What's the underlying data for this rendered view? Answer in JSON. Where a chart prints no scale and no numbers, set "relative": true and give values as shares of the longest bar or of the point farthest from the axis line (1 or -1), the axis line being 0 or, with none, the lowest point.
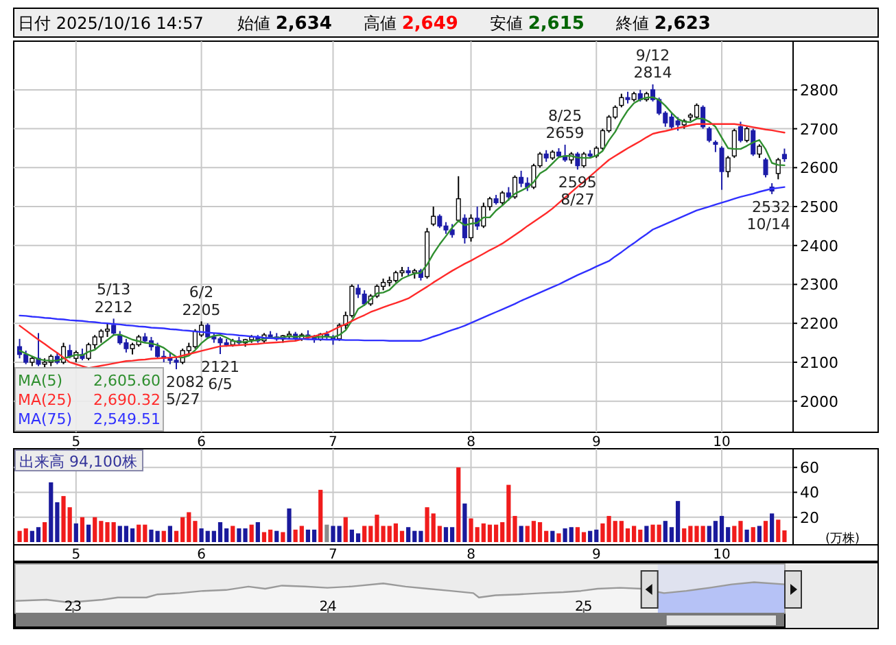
{
  "chart_data": [
    {
      "type": "candlestick",
      "title": "日付 2025/10/16 14:57",
      "annotations": [
        "始値 2,634",
        "高値 2,649",
        "安値 2,615",
        "終値 2,623",
        {
          "text": "5/13\n2212",
          "y": 2212
        },
        {
          "text": "6/2\n2205",
          "y": 2205
        },
        {
          "text": "2082\n5/27",
          "y": 2082
        },
        {
          "text": "2121\n6/5",
          "y": 2121
        },
        {
          "text": "8/25\n2659",
          "y": 2659
        },
        {
          "text": "2595\n8/27",
          "y": 2595
        },
        {
          "text": "9/12\n2814",
          "y": 2814
        },
        {
          "text": "2532\n10/14",
          "y": 2532
        }
      ],
      "categories": [
        null,
        null,
        null,
        null,
        null,
        null,
        null,
        null,
        null,
        "5",
        null,
        null,
        null,
        null,
        null,
        null,
        null,
        null,
        null,
        null,
        null,
        null,
        null,
        null,
        null,
        null,
        null,
        null,
        null,
        "6",
        null,
        null,
        null,
        null,
        null,
        null,
        null,
        null,
        null,
        null,
        null,
        null,
        null,
        null,
        null,
        null,
        null,
        null,
        null,
        null,
        "7",
        null,
        null,
        null,
        null,
        null,
        null,
        null,
        null,
        null,
        null,
        null,
        null,
        null,
        null,
        null,
        null,
        null,
        null,
        null,
        null,
        null,
        "8",
        null,
        null,
        null,
        null,
        null,
        null,
        null,
        null,
        null,
        null,
        null,
        null,
        null,
        null,
        null,
        null,
        null,
        null,
        null,
        "9",
        null,
        null,
        null,
        null,
        null,
        null,
        null,
        null,
        null,
        null,
        null,
        null,
        null,
        null,
        null,
        null,
        null,
        null,
        null,
        "10",
        null,
        null,
        null,
        null,
        null,
        null,
        null,
        null,
        null,
        null
      ],
      "ohlc": [
        [
          2140,
          2160,
          2110,
          2120
        ],
        [
          2120,
          2130,
          2095,
          2100
        ],
        [
          2100,
          2115,
          2090,
          2110
        ],
        [
          2110,
          2175,
          2090,
          2095
        ],
        [
          2095,
          2110,
          2085,
          2100
        ],
        [
          2100,
          2120,
          2090,
          2115
        ],
        [
          2115,
          2125,
          2095,
          2100
        ],
        [
          2100,
          2150,
          2095,
          2140
        ],
        [
          2130,
          2145,
          2110,
          2115
        ],
        [
          2110,
          2130,
          2100,
          2125
        ],
        [
          2120,
          2135,
          2105,
          2110
        ],
        [
          2110,
          2150,
          2105,
          2145
        ],
        [
          2145,
          2170,
          2135,
          2165
        ],
        [
          2165,
          2185,
          2150,
          2180
        ],
        [
          2180,
          2200,
          2165,
          2185
        ],
        [
          2195,
          2212,
          2170,
          2175
        ],
        [
          2170,
          2180,
          2145,
          2150
        ],
        [
          2150,
          2160,
          2125,
          2135
        ],
        [
          2135,
          2150,
          2120,
          2145
        ],
        [
          2145,
          2170,
          2140,
          2165
        ],
        [
          2165,
          2175,
          2150,
          2155
        ],
        [
          2155,
          2165,
          2130,
          2140
        ],
        [
          2140,
          2150,
          2110,
          2115
        ],
        [
          2115,
          2130,
          2100,
          2110
        ],
        [
          2110,
          2125,
          2095,
          2105
        ],
        [
          2105,
          2115,
          2082,
          2100
        ],
        [
          2100,
          2135,
          2095,
          2130
        ],
        [
          2130,
          2150,
          2120,
          2140
        ],
        [
          2140,
          2185,
          2135,
          2180
        ],
        [
          2170,
          2205,
          2165,
          2195
        ],
        [
          2195,
          2200,
          2160,
          2165
        ],
        [
          2165,
          2175,
          2150,
          2160
        ],
        [
          2160,
          2165,
          2121,
          2150
        ],
        [
          2150,
          2160,
          2140,
          2145
        ],
        [
          2145,
          2160,
          2140,
          2155
        ],
        [
          2155,
          2165,
          2145,
          2150
        ],
        [
          2150,
          2160,
          2140,
          2158
        ],
        [
          2158,
          2170,
          2150,
          2165
        ],
        [
          2165,
          2170,
          2150,
          2155
        ],
        [
          2155,
          2175,
          2150,
          2170
        ],
        [
          2170,
          2180,
          2160,
          2165
        ],
        [
          2165,
          2175,
          2155,
          2160
        ],
        [
          2160,
          2170,
          2150,
          2168
        ],
        [
          2168,
          2180,
          2160,
          2172
        ],
        [
          2172,
          2178,
          2155,
          2160
        ],
        [
          2160,
          2175,
          2155,
          2170
        ],
        [
          2170,
          2182,
          2160,
          2165
        ],
        [
          2165,
          2170,
          2150,
          2158
        ],
        [
          2158,
          2175,
          2155,
          2172
        ],
        [
          2172,
          2180,
          2160,
          2165
        ],
        [
          2165,
          2170,
          2145,
          2160
        ],
        [
          2160,
          2200,
          2155,
          2195
        ],
        [
          2195,
          2230,
          2185,
          2220
        ],
        [
          2220,
          2300,
          2215,
          2295
        ],
        [
          2290,
          2300,
          2265,
          2275
        ],
        [
          2275,
          2285,
          2245,
          2250
        ],
        [
          2250,
          2275,
          2245,
          2270
        ],
        [
          2270,
          2300,
          2265,
          2295
        ],
        [
          2295,
          2315,
          2285,
          2305
        ],
        [
          2305,
          2320,
          2295,
          2310
        ],
        [
          2310,
          2335,
          2305,
          2330
        ],
        [
          2330,
          2345,
          2320,
          2335
        ],
        [
          2335,
          2345,
          2320,
          2330
        ],
        [
          2330,
          2340,
          2315,
          2335
        ],
        [
          2335,
          2340,
          2310,
          2318
        ],
        [
          2320,
          2445,
          2315,
          2435
        ],
        [
          2455,
          2500,
          2450,
          2475
        ],
        [
          2475,
          2480,
          2445,
          2450
        ],
        [
          2450,
          2460,
          2430,
          2440
        ],
        [
          2440,
          2455,
          2420,
          2428
        ],
        [
          2465,
          2578,
          2460,
          2520
        ],
        [
          2470,
          2480,
          2405,
          2420
        ],
        [
          2420,
          2480,
          2410,
          2470
        ],
        [
          2470,
          2500,
          2440,
          2450
        ],
        [
          2450,
          2510,
          2445,
          2500
        ],
        [
          2500,
          2525,
          2490,
          2520
        ],
        [
          2520,
          2530,
          2505,
          2510
        ],
        [
          2510,
          2540,
          2505,
          2535
        ],
        [
          2535,
          2550,
          2515,
          2525
        ],
        [
          2525,
          2580,
          2520,
          2575
        ],
        [
          2575,
          2592,
          2550,
          2560
        ],
        [
          2560,
          2575,
          2540,
          2550
        ],
        [
          2550,
          2610,
          2545,
          2605
        ],
        [
          2605,
          2640,
          2600,
          2635
        ],
        [
          2635,
          2645,
          2615,
          2625
        ],
        [
          2625,
          2645,
          2620,
          2640
        ],
        [
          2640,
          2650,
          2625,
          2630
        ],
        [
          2630,
          2659,
          2615,
          2620
        ],
        [
          2620,
          2640,
          2610,
          2635
        ],
        [
          2635,
          2640,
          2595,
          2605
        ],
        [
          2605,
          2640,
          2600,
          2635
        ],
        [
          2635,
          2645,
          2625,
          2630
        ],
        [
          2630,
          2655,
          2625,
          2650
        ],
        [
          2650,
          2700,
          2645,
          2695
        ],
        [
          2695,
          2735,
          2690,
          2730
        ],
        [
          2730,
          2760,
          2725,
          2755
        ],
        [
          2760,
          2790,
          2755,
          2780
        ],
        [
          2780,
          2795,
          2765,
          2775
        ],
        [
          2775,
          2795,
          2770,
          2790
        ],
        [
          2790,
          2800,
          2770,
          2775
        ],
        [
          2775,
          2795,
          2770,
          2790
        ],
        [
          2800,
          2814,
          2770,
          2775
        ],
        [
          2775,
          2780,
          2735,
          2740
        ],
        [
          2740,
          2745,
          2705,
          2715
        ],
        [
          2730,
          2740,
          2700,
          2705
        ],
        [
          2720,
          2730,
          2695,
          2710
        ],
        [
          2710,
          2725,
          2700,
          2720
        ],
        [
          2730,
          2740,
          2720,
          2735
        ],
        [
          2730,
          2765,
          2725,
          2760
        ],
        [
          2755,
          2760,
          2700,
          2705
        ],
        [
          2700,
          2705,
          2665,
          2670
        ],
        [
          2665,
          2670,
          2640,
          2660
        ],
        [
          2650,
          2655,
          2543,
          2590
        ],
        [
          2590,
          2630,
          2575,
          2625
        ],
        [
          2630,
          2700,
          2625,
          2695
        ],
        [
          2705,
          2718,
          2665,
          2670
        ],
        [
          2670,
          2705,
          2665,
          2700
        ],
        [
          2695,
          2700,
          2630,
          2635
        ],
        [
          2635,
          2660,
          2625,
          2655
        ],
        [
          2620,
          2625,
          2575,
          2582
        ],
        [
          2550,
          2560,
          2532,
          2540
        ],
        [
          2585,
          2625,
          2570,
          2620
        ],
        [
          2634,
          2649,
          2615,
          2623
        ]
      ],
      "series": [
        {
          "type": "line",
          "name": "MA(5) 2,605.60",
          "color": "#2f8f2f",
          "values": [
            2130,
            2122,
            2115,
            2108,
            2105,
            2104,
            2104,
            2110,
            2114,
            2119,
            2118,
            2127,
            2132,
            2145,
            2157,
            2170,
            2171,
            2165,
            2158,
            2154,
            2150,
            2148,
            2144,
            2137,
            2125,
            2114,
            2112,
            2117,
            2131,
            2149,
            2162,
            2168,
            2170,
            2163,
            2155,
            2152,
            2152,
            2155,
            2157,
            2160,
            2163,
            2163,
            2164,
            2167,
            2165,
            2167,
            2167,
            2165,
            2165,
            2166,
            2164,
            2170,
            2182,
            2207,
            2237,
            2247,
            2262,
            2277,
            2279,
            2286,
            2302,
            2315,
            2322,
            2328,
            2330,
            2351,
            2379,
            2403,
            2424,
            2446,
            2463,
            2452,
            2456,
            2458,
            2472,
            2472,
            2490,
            2503,
            2518,
            2533,
            2541,
            2549,
            2563,
            2585,
            2595,
            2611,
            2627,
            2630,
            2630,
            2626,
            2625,
            2625,
            2631,
            2643,
            2670,
            2692,
            2722,
            2747,
            2766,
            2775,
            2780,
            2781,
            2774,
            2759,
            2741,
            2725,
            2718,
            2717,
            2726,
            2726,
            2718,
            2705,
            2677,
            2650,
            2648,
            2648,
            2656,
            2665,
            2671,
            2647,
            2612,
            2607,
            2606
          ]
        },
        {
          "type": "line",
          "name": "MA(25) 2,690.32",
          "color": "#ff2a2a",
          "values": [
            2194,
            2182,
            2170,
            2158,
            2147,
            2135,
            2124,
            2112,
            2100,
            2095,
            2090,
            2085,
            2088,
            2091,
            2094,
            2097,
            2100,
            2103,
            2104,
            2106,
            2107,
            2109,
            2110,
            2111,
            2112,
            2113,
            2117,
            2121,
            2125,
            2129,
            2133,
            2137,
            2141,
            2142,
            2143,
            2144,
            2145,
            2146,
            2147,
            2149,
            2150,
            2151,
            2152,
            2154,
            2155,
            2159,
            2163,
            2167,
            2171,
            2175,
            2183,
            2191,
            2198,
            2206,
            2214,
            2221,
            2229,
            2235,
            2241,
            2247,
            2252,
            2258,
            2264,
            2274,
            2284,
            2294,
            2305,
            2315,
            2325,
            2335,
            2344,
            2353,
            2361,
            2370,
            2379,
            2388,
            2396,
            2405,
            2416,
            2427,
            2438,
            2450,
            2461,
            2472,
            2483,
            2495,
            2509,
            2523,
            2537,
            2551,
            2564,
            2578,
            2592,
            2606,
            2620,
            2630,
            2640,
            2650,
            2659,
            2668,
            2678,
            2687,
            2691,
            2694,
            2698,
            2702,
            2705,
            2709,
            2712,
            2712,
            2712,
            2712,
            2712,
            2712,
            2712,
            2710,
            2707,
            2704,
            2701,
            2698,
            2696,
            2693,
            2690
          ]
        },
        {
          "type": "line",
          "name": "MA(75) 2,549.51",
          "color": "#3030ff",
          "values": [
            2220,
            2219,
            2217,
            2216,
            2214,
            2213,
            2211,
            2210,
            2208,
            2207,
            2206,
            2204,
            2203,
            2201,
            2200,
            2198,
            2197,
            2195,
            2194,
            2192,
            2191,
            2189,
            2188,
            2187,
            2185,
            2184,
            2182,
            2181,
            2179,
            2178,
            2176,
            2175,
            2174,
            2172,
            2171,
            2169,
            2168,
            2166,
            2165,
            2163,
            2162,
            2161,
            2161,
            2160,
            2160,
            2160,
            2159,
            2159,
            2159,
            2158,
            2158,
            2158,
            2157,
            2157,
            2157,
            2156,
            2156,
            2156,
            2156,
            2155,
            2155,
            2155,
            2155,
            2155,
            2155,
            2160,
            2166,
            2171,
            2177,
            2183,
            2188,
            2194,
            2201,
            2208,
            2215,
            2222,
            2229,
            2236,
            2243,
            2250,
            2258,
            2265,
            2272,
            2279,
            2286,
            2293,
            2300,
            2308,
            2316,
            2324,
            2331,
            2338,
            2346,
            2353,
            2360,
            2372,
            2383,
            2395,
            2406,
            2418,
            2429,
            2441,
            2448,
            2455,
            2462,
            2469,
            2476,
            2483,
            2490,
            2495,
            2500,
            2505,
            2510,
            2515,
            2520,
            2525,
            2529,
            2533,
            2538,
            2542,
            2546,
            2548,
            2550
          ]
        }
      ],
      "ylim": [
        1920,
        2925
      ],
      "yticks": [
        2000,
        2100,
        2200,
        2300,
        2400,
        2500,
        2600,
        2700,
        2800
      ],
      "grid": true
    },
    {
      "type": "bar",
      "title": "出来高 94,100株",
      "ylabel": "(万株)",
      "categories": [
        null,
        null,
        null,
        null,
        null,
        null,
        null,
        null,
        null,
        "5",
        null,
        null,
        null,
        null,
        null,
        null,
        null,
        null,
        null,
        null,
        null,
        null,
        null,
        null,
        null,
        null,
        null,
        null,
        null,
        "6",
        null,
        null,
        null,
        null,
        null,
        null,
        null,
        null,
        null,
        null,
        null,
        null,
        null,
        null,
        null,
        null,
        null,
        null,
        null,
        null,
        "7",
        null,
        null,
        null,
        null,
        null,
        null,
        null,
        null,
        null,
        null,
        null,
        null,
        null,
        null,
        null,
        null,
        null,
        null,
        null,
        null,
        null,
        "8",
        null,
        null,
        null,
        null,
        null,
        null,
        null,
        null,
        null,
        null,
        null,
        null,
        null,
        null,
        null,
        null,
        null,
        null,
        null,
        "9",
        null,
        null,
        null,
        null,
        null,
        null,
        null,
        null,
        null,
        null,
        null,
        null,
        null,
        null,
        null,
        null,
        null,
        null,
        null,
        "10",
        null,
        null,
        null,
        null,
        null,
        null,
        null,
        null,
        null,
        null
      ],
      "values": [
        9,
        11,
        9,
        12,
        16,
        48,
        32,
        37,
        28,
        15,
        20,
        14,
        20,
        17,
        16,
        16,
        13,
        13,
        11,
        14,
        14,
        10,
        9,
        9,
        13,
        9,
        20,
        24,
        17,
        11,
        9,
        9,
        16,
        11,
        13,
        11,
        11,
        14,
        16,
        8,
        10,
        9,
        8,
        27,
        10,
        13,
        10,
        10,
        42,
        14,
        13,
        13,
        20,
        10,
        7,
        13,
        13,
        22,
        13,
        13,
        15,
        9,
        12,
        9,
        9,
        28,
        23,
        13,
        12,
        12,
        60,
        31,
        19,
        12,
        15,
        14,
        14,
        16,
        46,
        21,
        13,
        13,
        17,
        16,
        9,
        9,
        7,
        11,
        12,
        12,
        8,
        9,
        10,
        15,
        21,
        17,
        17,
        11,
        13,
        10,
        13,
        14,
        14,
        17,
        12,
        33,
        11,
        13,
        13,
        13,
        13,
        17,
        21,
        12,
        13,
        17,
        10,
        12,
        13,
        17,
        23,
        18,
        9.4
      ],
      "colors": [
        "#f01c1c",
        "#f01c1c",
        "#1a1a9c",
        "#1a1a9c",
        "#f01c1c",
        "#1a1a9c",
        "#1a1a9c",
        "#f01c1c",
        "#f01c1c",
        "#1a1a9c",
        "#f01c1c",
        "#1a1a9c",
        "#f01c1c",
        "#f01c1c",
        "#f01c1c",
        "#f01c1c",
        "#1a1a9c",
        "#1a1a9c",
        "#1a1a9c",
        "#f01c1c",
        "#f01c1c",
        "#1a1a9c",
        "#1a1a9c",
        "#f01c1c",
        "#1a1a9c",
        "#f01c1c",
        "#f01c1c",
        "#f01c1c",
        "#f01c1c",
        "#1a1a9c",
        "#1a1a9c",
        "#1a1a9c",
        "#1a1a9c",
        "#1a1a9c",
        "#f01c1c",
        "#1a1a9c",
        "#1a1a9c",
        "#f01c1c",
        "#1a1a9c",
        "#f01c1c",
        "#f01c1c",
        "#1a1a9c",
        "#f01c1c",
        "#1a1a9c",
        "#f01c1c",
        "#f01c1c",
        "#1a1a9c",
        "#1a1a9c",
        "#f01c1c",
        "#8c8c8c",
        "#1a1a9c",
        "#1a1a9c",
        "#f01c1c",
        "#1a1a9c",
        "#1a1a9c",
        "#f01c1c",
        "#f01c1c",
        "#f01c1c",
        "#f01c1c",
        "#f01c1c",
        "#f01c1c",
        "#f01c1c",
        "#1a1a9c",
        "#1a1a9c",
        "#1a1a9c",
        "#f01c1c",
        "#f01c1c",
        "#f01c1c",
        "#1a1a9c",
        "#1a1a9c",
        "#f01c1c",
        "#1a1a9c",
        "#f01c1c",
        "#f01c1c",
        "#f01c1c",
        "#f01c1c",
        "#f01c1c",
        "#f01c1c",
        "#f01c1c",
        "#f01c1c",
        "#1a1a9c",
        "#f01c1c",
        "#f01c1c",
        "#f01c1c",
        "#f01c1c",
        "#1a1a9c",
        "#f01c1c",
        "#1a1a9c",
        "#1a1a9c",
        "#f01c1c",
        "#f01c1c",
        "#1a1a9c",
        "#1a1a9c",
        "#f01c1c",
        "#f01c1c",
        "#f01c1c",
        "#f01c1c",
        "#f01c1c",
        "#f01c1c",
        "#f01c1c",
        "#1a1a9c",
        "#f01c1c",
        "#f01c1c",
        "#1a1a9c",
        "#1a1a9c",
        "#1a1a9c",
        "#f01c1c",
        "#f01c1c",
        "#f01c1c",
        "#f01c1c",
        "#1a1a9c",
        "#1a1a9c",
        "#1a1a9c",
        "#1a1a9c",
        "#f01c1c",
        "#f01c1c",
        "#1a1a9c",
        "#f01c1c",
        "#1a1a9c",
        "#f01c1c",
        "#1a1a9c",
        "#f01c1c",
        "#f01c1c"
      ],
      "ylim": [
        0,
        75
      ],
      "yticks": [
        20,
        40,
        60
      ],
      "grid": true
    },
    {
      "type": "area",
      "relative": true,
      "x": [
        "2022-10-10",
        "2022-11-24",
        "2022-12-26",
        "2023-02-12",
        "2023-03-06",
        "2023-04-16",
        "2023-05-02",
        "2023-06-03",
        "2023-07-06",
        "2023-08-08",
        "2023-09-09",
        "2023-10-03",
        "2023-10-27",
        "2023-11-29",
        "2023-12-31",
        "2024-02-02",
        "2024-03-20",
        "2024-04-21",
        "2024-05-23",
        "2024-06-25",
        "2024-07-27",
        "2024-08-04",
        "2024-08-28",
        "2024-09-30",
        "2024-11-01",
        "2024-12-03",
        "2024-12-28",
        "2025-01-21",
        "2025-02-22",
        "2025-03-25",
        "2025-04-26",
        "2025-05-28",
        "2025-06-30",
        "2025-08-01",
        "2025-09-02",
        "2025-10-16"
      ],
      "series": [
        {
          "color": "#9a9a9a",
          "values": [
            0.4,
            0.44,
            0.35,
            0.44,
            0.51,
            0.51,
            0.61,
            0.65,
            0.72,
            0.75,
            0.86,
            0.79,
            0.89,
            0.86,
            0.82,
            0.86,
            0.96,
            0.86,
            0.79,
            0.72,
            0.65,
            0.51,
            0.58,
            0.61,
            0.65,
            0.68,
            0.72,
            0.79,
            0.82,
            0.79,
            0.65,
            0.72,
            0.82,
            0.93,
            1,
            0.93
          ]
        }
      ],
      "xlim": [
        "2022-10-10",
        "2025-10-16"
      ],
      "xticks": [
        {
          "value": "2023-01-01",
          "label": "23"
        },
        {
          "value": "2024-01-01",
          "label": "24"
        },
        {
          "value": "2025-01-01",
          "label": "25"
        }
      ],
      "bands": [
        {
          "axis": "x",
          "from": "2025-04-17",
          "to": "2025-10-16",
          "color": "#b6c2f6"
        }
      ]
    }
  ]
}
